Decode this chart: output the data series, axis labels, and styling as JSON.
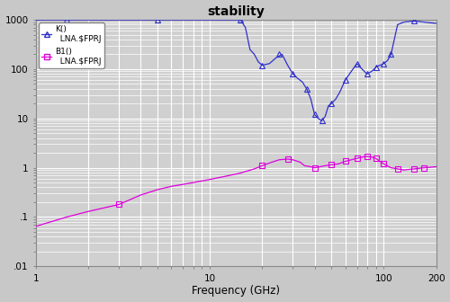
{
  "title": "stability",
  "xlabel": "Frequency (GHz)",
  "xlim": [
    1,
    200
  ],
  "ylim": [
    0.01,
    1000
  ],
  "fig_bg_color": "#c8c8c8",
  "plot_bg_color": "#d0d0d0",
  "K_freq": [
    1.0,
    1.5,
    2.0,
    3.0,
    4.0,
    5.0,
    6.0,
    7.0,
    8.0,
    9.0,
    10.0,
    11.0,
    12.0,
    13.0,
    14.0,
    15.0,
    16.0,
    17.0,
    18.0,
    19.0,
    20.0,
    21.0,
    22.0,
    24.0,
    26.0,
    28.0,
    30.0,
    32.0,
    34.0,
    36.0,
    38.0,
    40.0,
    42.0,
    44.0,
    46.0,
    48.0,
    50.0,
    53.0,
    56.0,
    60.0,
    65.0,
    70.0,
    75.0,
    80.0,
    85.0,
    88.0,
    90.0,
    92.0,
    95.0,
    98.0,
    100.0,
    105.0,
    110.0,
    120.0,
    130.0,
    150.0,
    170.0,
    200.0
  ],
  "K_val": [
    1000,
    1000,
    1000,
    1000,
    1000,
    1000,
    1000,
    1000,
    1000,
    1000,
    1000,
    1000,
    1000,
    1000,
    1000,
    1000,
    700,
    250,
    200,
    140,
    120,
    125,
    130,
    170,
    200,
    120,
    80,
    65,
    55,
    40,
    25,
    12,
    10,
    9,
    11,
    18,
    20,
    25,
    35,
    60,
    90,
    130,
    100,
    80,
    90,
    100,
    110,
    115,
    120,
    125,
    130,
    150,
    200,
    800,
    900,
    950,
    900,
    850
  ],
  "K_markers": [
    1.5,
    5.0,
    15.0,
    20.0,
    25.0,
    30.0,
    36.0,
    40.0,
    44.0,
    50.0,
    60.0,
    70.0,
    80.0,
    90.0,
    100.0,
    110.0,
    150.0
  ],
  "K_marker_vals": [
    1000,
    1000,
    1000,
    120,
    200,
    80,
    40,
    12,
    9,
    20,
    60,
    130,
    80,
    110,
    130,
    200,
    950
  ],
  "B1_freq": [
    1.0,
    1.5,
    2.0,
    3.0,
    4.0,
    5.0,
    6.0,
    7.0,
    8.0,
    9.0,
    10.0,
    12.0,
    15.0,
    18.0,
    20.0,
    22.0,
    25.0,
    28.0,
    30.0,
    33.0,
    35.0,
    38.0,
    40.0,
    43.0,
    46.0,
    50.0,
    55.0,
    60.0,
    65.0,
    70.0,
    75.0,
    80.0,
    85.0,
    90.0,
    95.0,
    100.0,
    110.0,
    120.0,
    130.0,
    150.0,
    170.0,
    200.0
  ],
  "B1_val": [
    0.065,
    0.1,
    0.13,
    0.18,
    0.28,
    0.36,
    0.42,
    0.46,
    0.5,
    0.54,
    0.58,
    0.66,
    0.78,
    0.95,
    1.1,
    1.25,
    1.45,
    1.5,
    1.45,
    1.3,
    1.1,
    1.05,
    1.0,
    1.05,
    1.1,
    1.15,
    1.2,
    1.35,
    1.45,
    1.55,
    1.65,
    1.7,
    1.65,
    1.55,
    1.35,
    1.2,
    1.0,
    0.95,
    0.9,
    0.95,
    1.0,
    1.05
  ],
  "B1_markers": [
    3.0,
    20.0,
    28.0,
    40.0,
    50.0,
    60.0,
    70.0,
    80.0,
    90.0,
    100.0,
    120.0,
    150.0,
    170.0
  ],
  "B1_marker_vals": [
    0.18,
    1.1,
    1.5,
    1.0,
    1.15,
    1.35,
    1.55,
    1.7,
    1.55,
    1.2,
    0.95,
    0.95,
    1.0
  ],
  "K_color": "#3030cc",
  "B1_color": "#dd00dd",
  "legend_K_line1": "K()",
  "legend_K_line2": "  LNA.$FPRJ",
  "legend_B1_line1": "B1()",
  "legend_B1_line2": "  LNA.$FPRJ",
  "grid_major_color": "#ffffff",
  "grid_minor_color": "#e0e0e0",
  "frame_color": "#888888",
  "ytick_labels": [
    ".01",
    ".1",
    "1",
    "10",
    "100",
    "1000"
  ],
  "ytick_vals": [
    0.01,
    0.1,
    1,
    10,
    100,
    1000
  ],
  "xtick_labels": [
    "1",
    "",
    "",
    "",
    "",
    "",
    "",
    "",
    "",
    "10",
    "",
    "",
    "",
    "",
    "",
    "",
    "",
    "",
    "100",
    "200"
  ],
  "xtick_vals": [
    1,
    2,
    3,
    4,
    5,
    6,
    7,
    8,
    9,
    10,
    20,
    30,
    40,
    50,
    60,
    70,
    80,
    90,
    100,
    200
  ]
}
